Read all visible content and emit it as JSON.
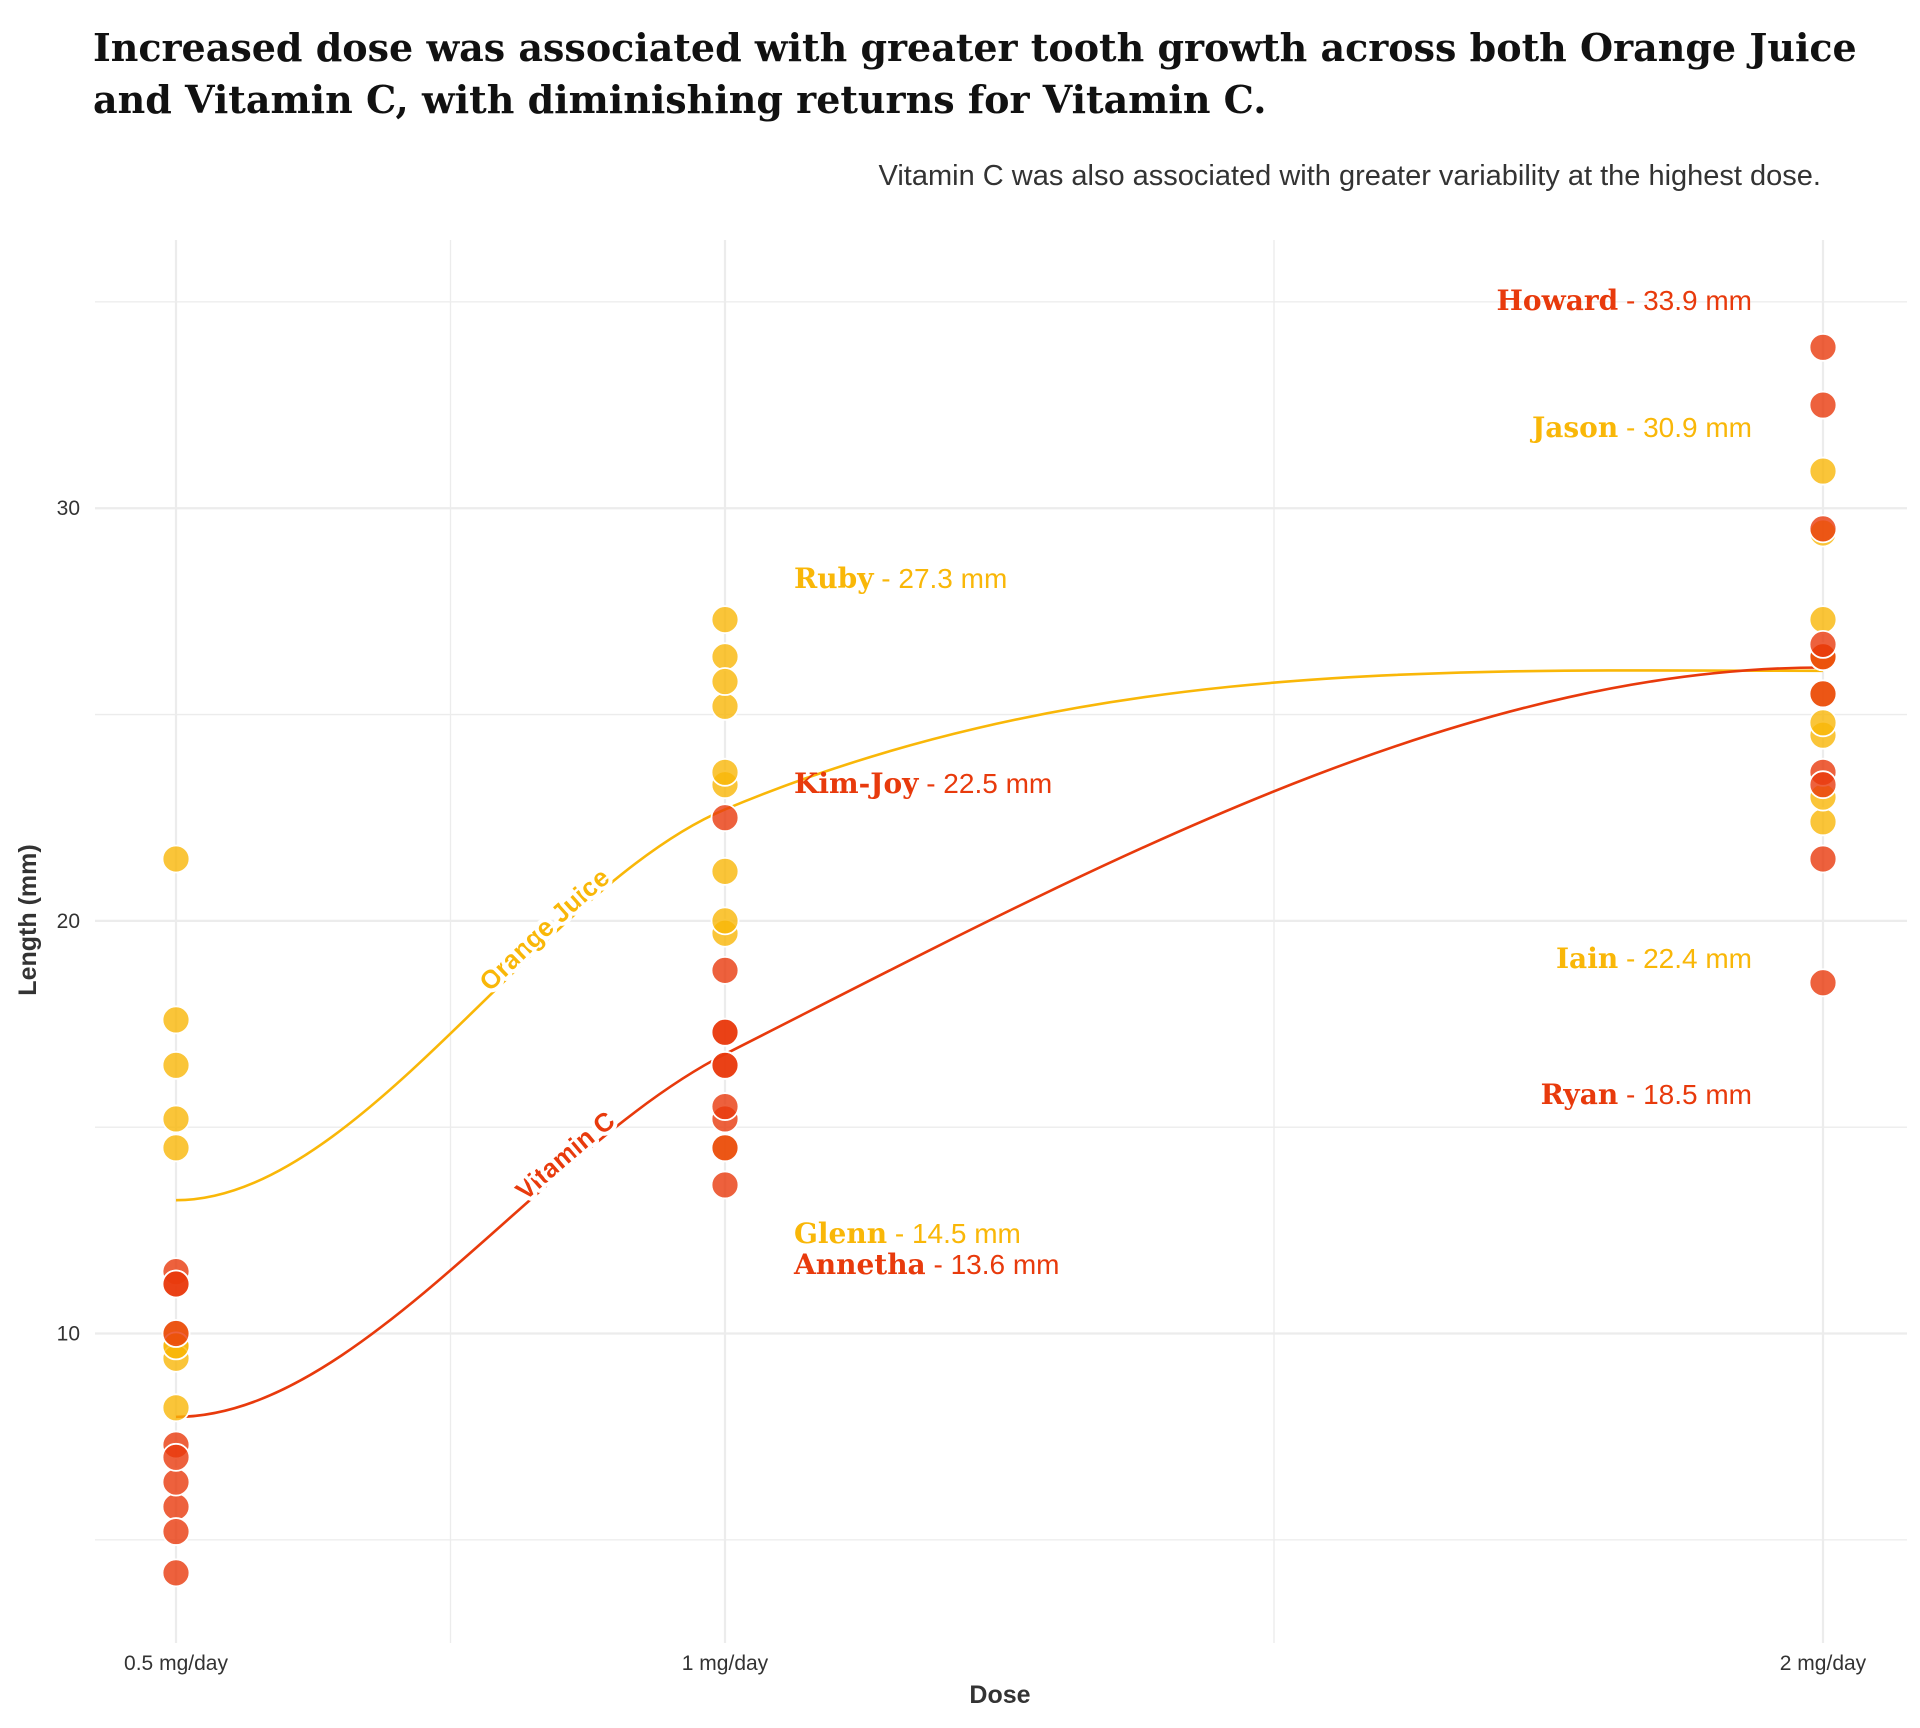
{
  "title": "Increased dose was associated with greater tooth growth across both Orange Juice and Vitamin C, with diminishing returns for Vitamin C.",
  "subtitle": "Vitamin C was also associated with greater variability at the highest dose.",
  "colors": {
    "orange_juice": "#F9B708",
    "vitamin_c": "#E83A0C",
    "grid": "#ECECEC"
  },
  "chart_data": {
    "type": "scatter",
    "xlabel": "Dose",
    "ylabel": "Length (mm)",
    "categories": [
      "0.5 mg/day",
      "1 mg/day",
      "2 mg/day"
    ],
    "x_values": [
      0.5,
      1,
      2
    ],
    "ylim": [
      2.5,
      36.5
    ],
    "yticks": [
      10,
      20,
      30
    ],
    "grid": true,
    "series": [
      {
        "name": "Orange Juice",
        "color": "#F9B708",
        "points": [
          [
            0.5,
            15.2
          ],
          [
            0.5,
            21.5
          ],
          [
            0.5,
            17.6
          ],
          [
            0.5,
            9.7
          ],
          [
            0.5,
            14.5
          ],
          [
            0.5,
            10.0
          ],
          [
            0.5,
            8.2
          ],
          [
            0.5,
            9.4
          ],
          [
            0.5,
            16.5
          ],
          [
            0.5,
            9.7
          ],
          [
            1,
            19.7
          ],
          [
            1,
            23.3
          ],
          [
            1,
            23.6
          ],
          [
            1,
            26.4
          ],
          [
            1,
            20.0
          ],
          [
            1,
            25.2
          ],
          [
            1,
            25.8
          ],
          [
            1,
            21.2
          ],
          [
            1,
            14.5
          ],
          [
            1,
            27.3
          ],
          [
            2,
            25.5
          ],
          [
            2,
            26.4
          ],
          [
            2,
            22.4
          ],
          [
            2,
            24.5
          ],
          [
            2,
            24.8
          ],
          [
            2,
            30.9
          ],
          [
            2,
            26.4
          ],
          [
            2,
            27.3
          ],
          [
            2,
            29.4
          ],
          [
            2,
            23.0
          ]
        ],
        "trend": [
          [
            0.5,
            13.23
          ],
          [
            1,
            22.7
          ],
          [
            2,
            26.06
          ]
        ],
        "curve_label": "Orange Juice"
      },
      {
        "name": "Vitamin C",
        "color": "#E83A0C",
        "points": [
          [
            0.5,
            4.2
          ],
          [
            0.5,
            11.5
          ],
          [
            0.5,
            7.3
          ],
          [
            0.5,
            5.8
          ],
          [
            0.5,
            6.4
          ],
          [
            0.5,
            10.0
          ],
          [
            0.5,
            11.2
          ],
          [
            0.5,
            11.2
          ],
          [
            0.5,
            5.2
          ],
          [
            0.5,
            7.0
          ],
          [
            1,
            16.5
          ],
          [
            1,
            16.5
          ],
          [
            1,
            15.2
          ],
          [
            1,
            17.3
          ],
          [
            1,
            22.5
          ],
          [
            1,
            17.3
          ],
          [
            1,
            13.6
          ],
          [
            1,
            14.5
          ],
          [
            1,
            18.8
          ],
          [
            1,
            15.5
          ],
          [
            2,
            23.6
          ],
          [
            2,
            18.5
          ],
          [
            2,
            33.9
          ],
          [
            2,
            25.5
          ],
          [
            2,
            26.4
          ],
          [
            2,
            32.5
          ],
          [
            2,
            26.7
          ],
          [
            2,
            21.5
          ],
          [
            2,
            23.3
          ],
          [
            2,
            29.5
          ]
        ],
        "trend": [
          [
            0.5,
            7.98
          ],
          [
            1,
            16.77
          ],
          [
            2,
            26.14
          ]
        ],
        "curve_label": "Vitamin C"
      }
    ],
    "annotations": [
      {
        "name": "Howard",
        "value": " - 33.9 mm",
        "series": "Vitamin C",
        "dose": 2,
        "y": 33.9,
        "anchor": "end"
      },
      {
        "name": "Jason",
        "value": " - 30.9 mm",
        "series": "Orange Juice",
        "dose": 2,
        "y": 30.9,
        "anchor": "end"
      },
      {
        "name": "Ruby",
        "value": " - 27.3 mm",
        "series": "Orange Juice",
        "dose": 1,
        "y": 27.3,
        "anchor": "start"
      },
      {
        "name": "Kim-Joy",
        "value": " - 22.5 mm",
        "series": "Vitamin C",
        "dose": 1,
        "y": 22.5,
        "anchor": "start"
      },
      {
        "name": "Iain",
        "value": " - 22.4 mm",
        "series": "Orange Juice",
        "dose": 2,
        "y": 22.4,
        "anchor": "end"
      },
      {
        "name": "Ryan",
        "value": " - 18.5 mm",
        "series": "Vitamin C",
        "dose": 2,
        "y": 18.5,
        "anchor": "end"
      },
      {
        "name": "Glenn",
        "value": " - 14.5 mm",
        "series": "Orange Juice",
        "dose": 1,
        "y": 14.5,
        "anchor": "start"
      },
      {
        "name": "Annetha",
        "value": " - 13.6 mm",
        "series": "Vitamin C",
        "dose": 1,
        "y": 13.6,
        "anchor": "start"
      }
    ]
  }
}
